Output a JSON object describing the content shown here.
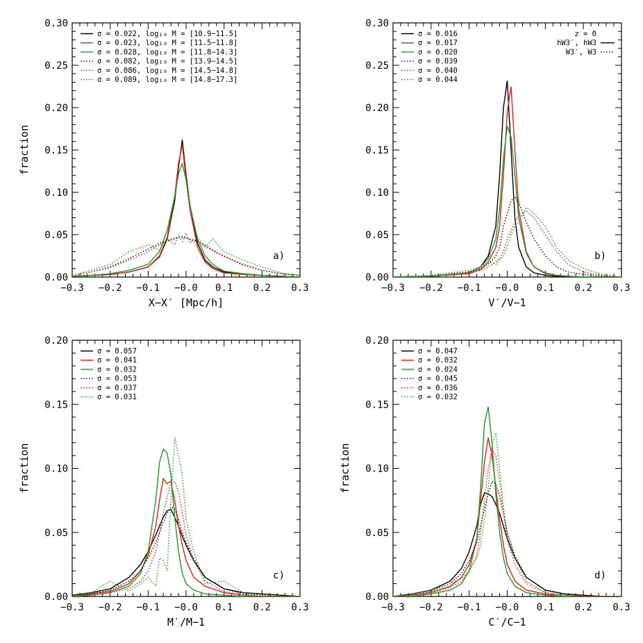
{
  "colors": {
    "black": "#000000",
    "red": "#e8201c",
    "green": "#1f9a26"
  },
  "chart_data": [
    {
      "type": "line",
      "panel_label": "a)",
      "xlabel": "X−X′ [Mpc/h]",
      "ylabel": "fraction",
      "xlim": [
        -0.3,
        0.3
      ],
      "ylim": [
        0,
        0.3
      ],
      "xticks": [
        "−0.3",
        "−0.2",
        "−0.1",
        "−0.0",
        "0.1",
        "0.2",
        "0.3"
      ],
      "yticks": [
        "0.00",
        "0.05",
        "0.10",
        "0.15",
        "0.20",
        "0.25",
        "0.30"
      ],
      "legend_position": "top-left",
      "x": [
        -0.3,
        -0.25,
        -0.2,
        -0.15,
        -0.1,
        -0.07,
        -0.05,
        -0.03,
        -0.02,
        -0.01,
        0.0,
        0.01,
        0.03,
        0.05,
        0.07,
        0.1,
        0.15,
        0.2,
        0.25,
        0.3
      ],
      "series": [
        {
          "name": "σ = 0.022, log₁₀ M = [10.9−11.5]",
          "color": "black",
          "dash": "solid",
          "values": [
            0.001,
            0.002,
            0.003,
            0.006,
            0.012,
            0.024,
            0.045,
            0.09,
            0.13,
            0.162,
            0.12,
            0.085,
            0.04,
            0.02,
            0.012,
            0.006,
            0.003,
            0.002,
            0.001,
            0.0
          ]
        },
        {
          "name": "σ = 0.023, log₁₀ M = [11.5−11.8]",
          "color": "red",
          "dash": "solid",
          "values": [
            0.001,
            0.002,
            0.003,
            0.006,
            0.012,
            0.025,
            0.047,
            0.095,
            0.135,
            0.156,
            0.115,
            0.08,
            0.035,
            0.018,
            0.01,
            0.005,
            0.003,
            0.002,
            0.001,
            0.0
          ]
        },
        {
          "name": "σ = 0.028, log₁₀ M = [11.8−14.3]",
          "color": "green",
          "dash": "solid",
          "values": [
            0.001,
            0.002,
            0.004,
            0.008,
            0.015,
            0.03,
            0.055,
            0.095,
            0.122,
            0.134,
            0.115,
            0.085,
            0.045,
            0.025,
            0.015,
            0.007,
            0.004,
            0.002,
            0.001,
            0.0
          ]
        },
        {
          "name": "σ = 0.082, log₁₀ M = [13.9−14.5]",
          "color": "black",
          "dash": "dot",
          "values": [
            0.002,
            0.006,
            0.012,
            0.022,
            0.033,
            0.04,
            0.043,
            0.046,
            0.047,
            0.047,
            0.046,
            0.045,
            0.042,
            0.038,
            0.032,
            0.025,
            0.015,
            0.008,
            0.004,
            0.002
          ]
        },
        {
          "name": "σ = 0.086, log₁₀ M = [14.5−14.8]",
          "color": "red",
          "dash": "dot",
          "values": [
            0.002,
            0.006,
            0.011,
            0.02,
            0.03,
            0.038,
            0.042,
            0.045,
            0.046,
            0.048,
            0.046,
            0.044,
            0.041,
            0.036,
            0.031,
            0.024,
            0.014,
            0.008,
            0.004,
            0.002
          ]
        },
        {
          "name": "σ = 0.089, log₁₀ M = [14.8−17.3]",
          "color": "green",
          "dash": "dot",
          "values": [
            0.002,
            0.008,
            0.015,
            0.03,
            0.038,
            0.032,
            0.045,
            0.038,
            0.05,
            0.042,
            0.052,
            0.04,
            0.048,
            0.035,
            0.045,
            0.03,
            0.02,
            0.012,
            0.005,
            0.002
          ]
        }
      ]
    },
    {
      "type": "line",
      "panel_label": "b)",
      "xlabel": "V′/V−1",
      "ylabel": "",
      "xlim": [
        -0.3,
        0.3
      ],
      "ylim": [
        0,
        0.3
      ],
      "xticks": [
        "−0.3",
        "−0.2",
        "−0.1",
        "−0.0",
        "0.1",
        "0.2",
        "0.3"
      ],
      "yticks": [
        "0.00",
        "0.05",
        "0.10",
        "0.15",
        "0.20",
        "0.25",
        "0.30"
      ],
      "legend_position": "top-left",
      "style_legend": [
        {
          "label": "z = 0",
          "dash": "none"
        },
        {
          "label": "hW3′, hW3",
          "dash": "solid"
        },
        {
          "label": "W3′, W3",
          "dash": "dot"
        }
      ],
      "x": [
        -0.3,
        -0.2,
        -0.1,
        -0.07,
        -0.05,
        -0.03,
        -0.02,
        -0.01,
        0.0,
        0.01,
        0.02,
        0.03,
        0.05,
        0.07,
        0.1,
        0.13,
        0.16,
        0.2,
        0.25,
        0.3
      ],
      "series": [
        {
          "name": "σ = 0.016",
          "color": "black",
          "dash": "solid",
          "values": [
            0.0,
            0.001,
            0.005,
            0.012,
            0.025,
            0.06,
            0.12,
            0.2,
            0.232,
            0.15,
            0.07,
            0.035,
            0.012,
            0.005,
            0.002,
            0.001,
            0.0,
            0.0,
            0.0,
            0.0
          ]
        },
        {
          "name": "σ = 0.017",
          "color": "red",
          "dash": "solid",
          "values": [
            0.0,
            0.001,
            0.004,
            0.009,
            0.018,
            0.035,
            0.06,
            0.12,
            0.195,
            0.225,
            0.15,
            0.08,
            0.03,
            0.012,
            0.004,
            0.002,
            0.001,
            0.0,
            0.0,
            0.0
          ]
        },
        {
          "name": "σ = 0.020",
          "color": "green",
          "dash": "solid",
          "values": [
            0.0,
            0.001,
            0.005,
            0.012,
            0.022,
            0.045,
            0.08,
            0.14,
            0.178,
            0.165,
            0.12,
            0.07,
            0.028,
            0.012,
            0.005,
            0.002,
            0.001,
            0.0,
            0.0,
            0.0
          ]
        },
        {
          "name": "σ = 0.039",
          "color": "black",
          "dash": "dot",
          "values": [
            0.0,
            0.002,
            0.006,
            0.01,
            0.015,
            0.025,
            0.035,
            0.06,
            0.075,
            0.09,
            0.095,
            0.088,
            0.065,
            0.045,
            0.025,
            0.012,
            0.006,
            0.003,
            0.001,
            0.0
          ]
        },
        {
          "name": "σ = 0.040",
          "color": "red",
          "dash": "dot",
          "values": [
            0.0,
            0.002,
            0.005,
            0.008,
            0.012,
            0.018,
            0.022,
            0.03,
            0.045,
            0.055,
            0.065,
            0.072,
            0.078,
            0.07,
            0.05,
            0.03,
            0.015,
            0.006,
            0.002,
            0.0
          ]
        },
        {
          "name": "σ = 0.044",
          "color": "green",
          "dash": "dot",
          "values": [
            0.0,
            0.002,
            0.008,
            0.012,
            0.018,
            0.015,
            0.02,
            0.025,
            0.035,
            0.05,
            0.06,
            0.065,
            0.082,
            0.075,
            0.06,
            0.035,
            0.02,
            0.01,
            0.003,
            0.0
          ]
        }
      ]
    },
    {
      "type": "line",
      "panel_label": "c)",
      "xlabel": "M′/M−1",
      "ylabel": "fraction",
      "xlim": [
        -0.3,
        0.3
      ],
      "ylim": [
        0,
        0.2
      ],
      "xticks": [
        "−0.3",
        "−0.2",
        "−0.1",
        "−0.0",
        "0.1",
        "0.2",
        "0.3"
      ],
      "yticks": [
        "0.00",
        "0.05",
        "0.10",
        "0.15",
        "0.20"
      ],
      "legend_position": "top-left",
      "x": [
        -0.3,
        -0.25,
        -0.2,
        -0.15,
        -0.12,
        -0.1,
        -0.08,
        -0.07,
        -0.06,
        -0.05,
        -0.04,
        -0.03,
        -0.02,
        -0.01,
        0.0,
        0.02,
        0.05,
        0.1,
        0.15,
        0.2,
        0.25,
        0.3
      ],
      "series": [
        {
          "name": "σ = 0.057",
          "color": "black",
          "dash": "solid",
          "values": [
            0.001,
            0.003,
            0.006,
            0.015,
            0.025,
            0.035,
            0.048,
            0.055,
            0.062,
            0.067,
            0.068,
            0.062,
            0.055,
            0.047,
            0.04,
            0.028,
            0.015,
            0.006,
            0.003,
            0.002,
            0.001,
            0.0
          ]
        },
        {
          "name": "σ = 0.041",
          "color": "red",
          "dash": "solid",
          "values": [
            0.0,
            0.002,
            0.004,
            0.01,
            0.02,
            0.032,
            0.055,
            0.075,
            0.092,
            0.088,
            0.09,
            0.075,
            0.055,
            0.04,
            0.028,
            0.015,
            0.008,
            0.003,
            0.001,
            0.0,
            0.0,
            0.0
          ]
        },
        {
          "name": "σ = 0.032",
          "color": "green",
          "dash": "solid",
          "values": [
            0.0,
            0.001,
            0.003,
            0.008,
            0.018,
            0.035,
            0.075,
            0.105,
            0.115,
            0.112,
            0.095,
            0.062,
            0.035,
            0.018,
            0.01,
            0.005,
            0.002,
            0.001,
            0.0,
            0.0,
            0.0,
            0.0
          ]
        },
        {
          "name": "σ = 0.053",
          "color": "black",
          "dash": "dot",
          "values": [
            0.0,
            0.002,
            0.005,
            0.012,
            0.02,
            0.03,
            0.042,
            0.05,
            0.058,
            0.065,
            0.07,
            0.068,
            0.06,
            0.05,
            0.042,
            0.03,
            0.015,
            0.006,
            0.002,
            0.001,
            0.0,
            0.0
          ]
        },
        {
          "name": "σ = 0.037",
          "color": "red",
          "dash": "dot",
          "values": [
            0.0,
            0.001,
            0.003,
            0.006,
            0.012,
            0.02,
            0.035,
            0.05,
            0.065,
            0.078,
            0.088,
            0.09,
            0.082,
            0.065,
            0.048,
            0.028,
            0.012,
            0.004,
            0.001,
            0.0,
            0.0,
            0.0
          ]
        },
        {
          "name": "σ = 0.031",
          "color": "green",
          "dash": "dot",
          "values": [
            0.0,
            0.003,
            0.012,
            0.004,
            0.01,
            0.015,
            0.008,
            0.03,
            0.028,
            0.02,
            0.075,
            0.124,
            0.11,
            0.095,
            0.06,
            0.035,
            0.01,
            0.012,
            0.003,
            0.001,
            0.0,
            0.0
          ]
        }
      ]
    },
    {
      "type": "line",
      "panel_label": "d)",
      "xlabel": "C′/C−1",
      "ylabel": "fraction",
      "xlim": [
        -0.3,
        0.3
      ],
      "ylim": [
        0,
        0.2
      ],
      "xticks": [
        "−0.3",
        "−0.2",
        "−0.1",
        "−0.0",
        "0.1",
        "0.2",
        "0.3"
      ],
      "yticks": [
        "0.00",
        "0.05",
        "0.10",
        "0.15",
        "0.20"
      ],
      "legend_position": "top-left",
      "x": [
        -0.3,
        -0.25,
        -0.2,
        -0.15,
        -0.12,
        -0.1,
        -0.08,
        -0.07,
        -0.06,
        -0.05,
        -0.04,
        -0.03,
        -0.02,
        -0.01,
        0.0,
        0.02,
        0.05,
        0.1,
        0.15,
        0.2,
        0.25,
        0.3
      ],
      "series": [
        {
          "name": "σ = 0.047",
          "color": "black",
          "dash": "solid",
          "values": [
            0.0,
            0.002,
            0.005,
            0.012,
            0.022,
            0.035,
            0.055,
            0.072,
            0.081,
            0.08,
            0.078,
            0.072,
            0.065,
            0.055,
            0.045,
            0.03,
            0.015,
            0.005,
            0.002,
            0.001,
            0.0,
            0.0
          ]
        },
        {
          "name": "σ = 0.032",
          "color": "red",
          "dash": "solid",
          "values": [
            0.0,
            0.001,
            0.003,
            0.008,
            0.015,
            0.025,
            0.045,
            0.075,
            0.105,
            0.124,
            0.11,
            0.085,
            0.06,
            0.04,
            0.025,
            0.012,
            0.005,
            0.002,
            0.0,
            0.0,
            0.0,
            0.0
          ]
        },
        {
          "name": "σ = 0.024",
          "color": "green",
          "dash": "solid",
          "values": [
            0.0,
            0.0,
            0.002,
            0.005,
            0.01,
            0.02,
            0.045,
            0.085,
            0.135,
            0.148,
            0.12,
            0.08,
            0.05,
            0.03,
            0.018,
            0.008,
            0.003,
            0.001,
            0.0,
            0.0,
            0.0,
            0.0
          ]
        },
        {
          "name": "σ = 0.045",
          "color": "black",
          "dash": "dot",
          "values": [
            0.0,
            0.001,
            0.004,
            0.01,
            0.018,
            0.028,
            0.042,
            0.055,
            0.068,
            0.08,
            0.09,
            0.088,
            0.078,
            0.065,
            0.05,
            0.032,
            0.015,
            0.005,
            0.002,
            0.0,
            0.0,
            0.0
          ]
        },
        {
          "name": "σ = 0.036",
          "color": "red",
          "dash": "dot",
          "values": [
            0.0,
            0.001,
            0.003,
            0.007,
            0.012,
            0.02,
            0.032,
            0.05,
            0.075,
            0.1,
            0.115,
            0.11,
            0.09,
            0.065,
            0.045,
            0.025,
            0.01,
            0.003,
            0.001,
            0.0,
            0.0,
            0.0
          ]
        },
        {
          "name": "σ = 0.032",
          "color": "green",
          "dash": "dot",
          "values": [
            0.0,
            0.002,
            0.005,
            0.01,
            0.014,
            0.02,
            0.03,
            0.04,
            0.06,
            0.085,
            0.118,
            0.128,
            0.1,
            0.07,
            0.048,
            0.03,
            0.012,
            0.003,
            0.001,
            0.0,
            0.0,
            0.0
          ]
        }
      ]
    }
  ]
}
